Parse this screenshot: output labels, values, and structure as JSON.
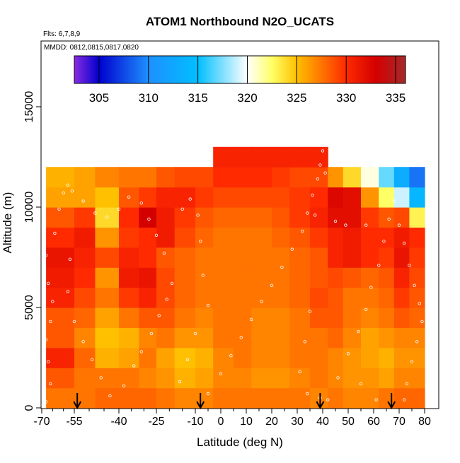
{
  "chart_data": {
    "type": "heatmap",
    "title": "ATOM1 Northbound N2O_UCATS",
    "annotations": {
      "flights": "Flts: 6,7,8,9",
      "dates": "MMDD: 0812,0815,0817,0820"
    },
    "xlabel": "Latitude (deg N)",
    "ylabel": "Altitude (m)",
    "xlim": [
      -70,
      80
    ],
    "ylim": [
      0,
      17500
    ],
    "xticks": [
      -70,
      -55,
      -40,
      -25,
      -10,
      0,
      10,
      20,
      30,
      40,
      50,
      60,
      70,
      80
    ],
    "xtick_labels": [
      "-70",
      "-55",
      "-40",
      "-25",
      "-10",
      "0",
      "10",
      "20",
      "30",
      "40",
      "50",
      "60",
      "70",
      "80"
    ],
    "yticks": [
      0,
      5000,
      10000,
      15000
    ],
    "ytick_labels": [
      "0",
      "5000",
      "10000",
      "15000"
    ],
    "colorbar": {
      "range": [
        302.5,
        336
      ],
      "ticks": [
        305,
        310,
        315,
        320,
        325,
        330,
        335
      ],
      "tick_labels": [
        "305",
        "310",
        "315",
        "320",
        "325",
        "330",
        "335"
      ],
      "stops": [
        {
          "v": 302.5,
          "c": "#8a2be2"
        },
        {
          "v": 305,
          "c": "#0000cd"
        },
        {
          "v": 310,
          "c": "#1e90ff"
        },
        {
          "v": 315,
          "c": "#00bfff"
        },
        {
          "v": 320,
          "c": "#ffffff"
        },
        {
          "v": 322.5,
          "c": "#ffff66"
        },
        {
          "v": 325,
          "c": "#ffc000"
        },
        {
          "v": 330,
          "c": "#ff2a00"
        },
        {
          "v": 333,
          "c": "#d40000"
        },
        {
          "v": 336,
          "c": "#a52a2a"
        }
      ]
    },
    "grid": {
      "lat_edges": [
        -68,
        -55,
        -48,
        -40,
        -32,
        -25,
        -18,
        -10,
        -3,
        5,
        12,
        20,
        27,
        35,
        42,
        48,
        55,
        62,
        68,
        74,
        80
      ],
      "alt_edges": [
        0,
        1000,
        2000,
        3000,
        4000,
        5000,
        6000,
        7000,
        8000,
        9000,
        10000,
        11000,
        12000,
        13000
      ],
      "values": [
        [
          327.5,
          327.5,
          328.0,
          328.0,
          328.0,
          327.5,
          327.0,
          327.0,
          327.5,
          327.5,
          327.5,
          327.5,
          327.5,
          327.0,
          327.5,
          327.0,
          327.0,
          327.5,
          328.0,
          328.0
        ],
        [
          328.5,
          327.5,
          327.5,
          327.5,
          327.0,
          326.5,
          325.5,
          326.0,
          327.0,
          327.0,
          326.5,
          326.5,
          327.0,
          327.5,
          327.0,
          326.5,
          326.5,
          326.0,
          327.0,
          327.0
        ],
        [
          330.5,
          328.0,
          325.5,
          326.0,
          327.5,
          326.0,
          325.0,
          325.5,
          327.0,
          327.5,
          327.0,
          327.0,
          327.5,
          327.5,
          327.0,
          326.5,
          326.0,
          325.5,
          326.5,
          326.5
        ],
        [
          328.5,
          327.0,
          325.0,
          325.5,
          327.0,
          327.5,
          326.5,
          326.5,
          327.5,
          327.5,
          327.0,
          327.0,
          327.5,
          327.5,
          328.0,
          327.0,
          326.0,
          326.5,
          327.0,
          327.0
        ],
        [
          328.5,
          328.0,
          326.0,
          327.5,
          328.5,
          328.5,
          327.5,
          327.0,
          327.5,
          327.5,
          327.0,
          327.0,
          327.5,
          328.5,
          328.5,
          327.5,
          327.0,
          327.5,
          328.5,
          328.0
        ],
        [
          330.5,
          329.0,
          327.5,
          329.5,
          330.5,
          329.0,
          328.0,
          327.5,
          327.5,
          327.5,
          327.5,
          327.5,
          328.0,
          329.0,
          328.5,
          327.5,
          327.5,
          328.0,
          329.5,
          328.5
        ],
        [
          331.0,
          330.0,
          326.5,
          331.0,
          331.5,
          329.0,
          328.0,
          327.5,
          327.5,
          327.5,
          327.5,
          327.5,
          328.0,
          328.5,
          329.0,
          328.5,
          328.0,
          328.5,
          330.5,
          329.0
        ],
        [
          331.5,
          330.5,
          329.0,
          330.5,
          330.0,
          328.5,
          328.0,
          327.5,
          327.5,
          327.5,
          327.5,
          327.5,
          328.0,
          328.5,
          330.5,
          331.0,
          330.0,
          329.5,
          331.5,
          329.5
        ],
        [
          330.0,
          331.0,
          326.5,
          329.5,
          330.0,
          331.0,
          329.0,
          328.0,
          327.5,
          327.5,
          327.5,
          328.0,
          328.5,
          329.5,
          330.5,
          331.0,
          330.0,
          330.0,
          331.0,
          330.0
        ],
        [
          328.5,
          329.5,
          324.0,
          330.0,
          333.0,
          331.0,
          329.5,
          328.5,
          328.0,
          328.0,
          328.0,
          328.5,
          329.5,
          330.5,
          332.0,
          332.0,
          329.5,
          328.5,
          329.0,
          323.0
        ],
        [
          326.0,
          326.0,
          325.0,
          328.5,
          329.5,
          330.5,
          330.5,
          329.5,
          329.0,
          329.0,
          329.0,
          329.0,
          329.5,
          330.0,
          332.5,
          332.0,
          326.5,
          322.5,
          319.0,
          314.0
        ],
        [
          325.5,
          326.0,
          327.0,
          327.5,
          327.5,
          328.5,
          329.0,
          329.0,
          330.0,
          330.0,
          330.0,
          329.5,
          329.0,
          329.0,
          326.5,
          324.0,
          320.5,
          317.0,
          313.0,
          309.0
        ],
        [
          null,
          null,
          null,
          null,
          null,
          null,
          null,
          null,
          330.5,
          330.5,
          330.5,
          330.5,
          330.5,
          330.5,
          null,
          null,
          null,
          null,
          null,
          null
        ]
      ]
    },
    "sample_points": [
      [
        -68,
        300
      ],
      [
        -66,
        1200
      ],
      [
        -67,
        2300
      ],
      [
        -68,
        3400
      ],
      [
        -66,
        4300
      ],
      [
        -65,
        5300
      ],
      [
        -67,
        6200
      ],
      [
        -68,
        7600
      ],
      [
        -64,
        8700
      ],
      [
        -62,
        9900
      ],
      [
        -60,
        10700
      ],
      [
        -58,
        11100
      ],
      [
        -56,
        10800
      ],
      [
        -52,
        10300
      ],
      [
        -48,
        9700
      ],
      [
        -44,
        9500
      ],
      [
        -40,
        9900
      ],
      [
        -36,
        10500
      ],
      [
        -31,
        10200
      ],
      [
        -28,
        9400
      ],
      [
        -25,
        8600
      ],
      [
        -22,
        7700
      ],
      [
        -57,
        7400
      ],
      [
        -58,
        5800
      ],
      [
        -55,
        4300
      ],
      [
        -52,
        3300
      ],
      [
        -49,
        2400
      ],
      [
        -46,
        1500
      ],
      [
        -43,
        600
      ],
      [
        -38,
        1100
      ],
      [
        -34,
        2100
      ],
      [
        -31,
        2800
      ],
      [
        -27,
        3700
      ],
      [
        -24,
        4600
      ],
      [
        -21,
        5400
      ],
      [
        -19,
        6200
      ],
      [
        -15,
        9900
      ],
      [
        -12,
        10400
      ],
      [
        -9,
        9600
      ],
      [
        -8,
        8300
      ],
      [
        -7,
        6600
      ],
      [
        -5,
        5100
      ],
      [
        -10,
        3700
      ],
      [
        -13,
        2400
      ],
      [
        -16,
        1300
      ],
      [
        -5,
        700
      ],
      [
        0,
        1700
      ],
      [
        4,
        2600
      ],
      [
        8,
        3500
      ],
      [
        12,
        4400
      ],
      [
        16,
        5300
      ],
      [
        20,
        6100
      ],
      [
        24,
        7000
      ],
      [
        28,
        7900
      ],
      [
        32,
        8800
      ],
      [
        34,
        9700
      ],
      [
        36,
        10600
      ],
      [
        38,
        11400
      ],
      [
        39,
        12100
      ],
      [
        40,
        12800
      ],
      [
        41,
        11700
      ],
      [
        37,
        9600
      ],
      [
        35,
        4800
      ],
      [
        33,
        3300
      ],
      [
        31,
        1800
      ],
      [
        34,
        700
      ],
      [
        39,
        500
      ],
      [
        42,
        400
      ],
      [
        46,
        1500
      ],
      [
        50,
        2700
      ],
      [
        54,
        3800
      ],
      [
        57,
        4900
      ],
      [
        59,
        6000
      ],
      [
        62,
        7100
      ],
      [
        64,
        8300
      ],
      [
        66,
        9400
      ],
      [
        68,
        10300
      ],
      [
        70,
        9100
      ],
      [
        72,
        8200
      ],
      [
        74,
        7100
      ],
      [
        76,
        6100
      ],
      [
        78,
        5200
      ],
      [
        79,
        4300
      ],
      [
        77,
        3300
      ],
      [
        75,
        2300
      ],
      [
        73,
        1200
      ],
      [
        72,
        400
      ],
      [
        61,
        400
      ],
      [
        55,
        1200
      ],
      [
        49,
        9100
      ],
      [
        45,
        9300
      ],
      [
        57,
        9100
      ]
    ],
    "markers": {
      "lats": [
        -54,
        -8,
        39,
        67
      ]
    }
  }
}
